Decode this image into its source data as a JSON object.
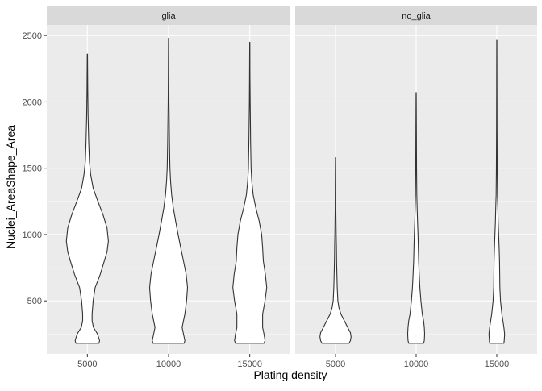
{
  "chart_data": {
    "type": "violin",
    "xlabel": "Plating density",
    "ylabel": "Nuclei_AreaShape_Area",
    "categories": [
      "5000",
      "10000",
      "15000"
    ],
    "y_ticks": [
      500,
      1000,
      1500,
      2000,
      2500
    ],
    "ylim": [
      100,
      2580
    ],
    "grid": true,
    "facets": [
      {
        "label": "glia",
        "violins": [
          {
            "x": "5000",
            "min": 180,
            "max": 2360,
            "profile": [
              [
                180,
                0.34
              ],
              [
                200,
                0.36
              ],
              [
                250,
                0.3
              ],
              [
                300,
                0.18
              ],
              [
                350,
                0.14
              ],
              [
                400,
                0.14
              ],
              [
                500,
                0.17
              ],
              [
                600,
                0.23
              ],
              [
                700,
                0.38
              ],
              [
                800,
                0.5
              ],
              [
                870,
                0.58
              ],
              [
                950,
                0.62
              ],
              [
                1050,
                0.58
              ],
              [
                1150,
                0.46
              ],
              [
                1250,
                0.31
              ],
              [
                1350,
                0.17
              ],
              [
                1450,
                0.1
              ],
              [
                1550,
                0.06
              ],
              [
                1700,
                0.04
              ],
              [
                1900,
                0.02
              ],
              [
                2100,
                0.01
              ],
              [
                2360,
                0.003
              ]
            ]
          },
          {
            "x": "10000",
            "min": 180,
            "max": 2480,
            "profile": [
              [
                180,
                0.46
              ],
              [
                200,
                0.48
              ],
              [
                250,
                0.44
              ],
              [
                300,
                0.4
              ],
              [
                400,
                0.48
              ],
              [
                500,
                0.53
              ],
              [
                600,
                0.56
              ],
              [
                700,
                0.52
              ],
              [
                800,
                0.44
              ],
              [
                900,
                0.36
              ],
              [
                1000,
                0.28
              ],
              [
                1100,
                0.21
              ],
              [
                1200,
                0.14
              ],
              [
                1300,
                0.09
              ],
              [
                1400,
                0.06
              ],
              [
                1500,
                0.04
              ],
              [
                1700,
                0.025
              ],
              [
                2000,
                0.012
              ],
              [
                2200,
                0.006
              ],
              [
                2480,
                0.002
              ]
            ]
          },
          {
            "x": "15000",
            "min": 180,
            "max": 2450,
            "profile": [
              [
                180,
                0.42
              ],
              [
                200,
                0.45
              ],
              [
                250,
                0.42
              ],
              [
                300,
                0.38
              ],
              [
                400,
                0.38
              ],
              [
                500,
                0.45
              ],
              [
                600,
                0.5
              ],
              [
                700,
                0.46
              ],
              [
                800,
                0.4
              ],
              [
                900,
                0.38
              ],
              [
                1000,
                0.35
              ],
              [
                1100,
                0.28
              ],
              [
                1200,
                0.18
              ],
              [
                1300,
                0.1
              ],
              [
                1400,
                0.06
              ],
              [
                1500,
                0.04
              ],
              [
                1700,
                0.025
              ],
              [
                2000,
                0.012
              ],
              [
                2200,
                0.006
              ],
              [
                2450,
                0.002
              ]
            ]
          }
        ]
      },
      {
        "label": "no_glia",
        "violins": [
          {
            "x": "5000",
            "min": 180,
            "max": 1580,
            "profile": [
              [
                180,
                0.4
              ],
              [
                200,
                0.44
              ],
              [
                230,
                0.46
              ],
              [
                260,
                0.44
              ],
              [
                300,
                0.36
              ],
              [
                350,
                0.26
              ],
              [
                400,
                0.16
              ],
              [
                450,
                0.1
              ],
              [
                500,
                0.07
              ],
              [
                600,
                0.05
              ],
              [
                700,
                0.04
              ],
              [
                800,
                0.03
              ],
              [
                900,
                0.025
              ],
              [
                1000,
                0.018
              ],
              [
                1200,
                0.01
              ],
              [
                1400,
                0.006
              ],
              [
                1580,
                0.002
              ]
            ]
          },
          {
            "x": "10000",
            "min": 180,
            "max": 2070,
            "profile": [
              [
                180,
                0.22
              ],
              [
                200,
                0.24
              ],
              [
                250,
                0.25
              ],
              [
                300,
                0.24
              ],
              [
                350,
                0.22
              ],
              [
                400,
                0.18
              ],
              [
                500,
                0.14
              ],
              [
                600,
                0.11
              ],
              [
                700,
                0.09
              ],
              [
                800,
                0.075
              ],
              [
                900,
                0.065
              ],
              [
                1000,
                0.055
              ],
              [
                1100,
                0.04
              ],
              [
                1200,
                0.028
              ],
              [
                1300,
                0.02
              ],
              [
                1500,
                0.012
              ],
              [
                1800,
                0.006
              ],
              [
                2070,
                0.002
              ]
            ]
          },
          {
            "x": "15000",
            "min": 180,
            "max": 2470,
            "profile": [
              [
                180,
                0.21
              ],
              [
                200,
                0.22
              ],
              [
                250,
                0.23
              ],
              [
                300,
                0.21
              ],
              [
                400,
                0.15
              ],
              [
                500,
                0.11
              ],
              [
                600,
                0.09
              ],
              [
                700,
                0.085
              ],
              [
                800,
                0.08
              ],
              [
                900,
                0.07
              ],
              [
                1000,
                0.055
              ],
              [
                1100,
                0.04
              ],
              [
                1200,
                0.03
              ],
              [
                1300,
                0.02
              ],
              [
                1500,
                0.012
              ],
              [
                1800,
                0.007
              ],
              [
                2100,
                0.004
              ],
              [
                2470,
                0.002
              ]
            ]
          }
        ]
      }
    ]
  }
}
